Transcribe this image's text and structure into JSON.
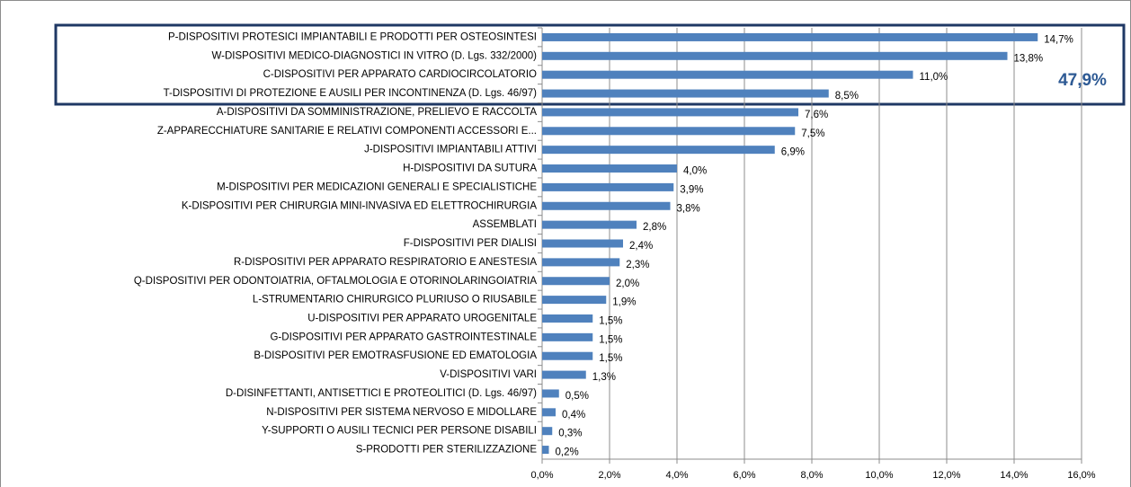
{
  "chart_data": {
    "type": "bar",
    "orientation": "horizontal",
    "categories": [
      "P-DISPOSITIVI PROTESICI IMPIANTABILI E PRODOTTI PER OSTEOSINTESI",
      "W-DISPOSITIVI MEDICO-DIAGNOSTICI IN VITRO (D. Lgs. 332/2000)",
      "C-DISPOSITIVI PER APPARATO CARDIOCIRCOLATORIO",
      "T-DISPOSITIVI DI PROTEZIONE E AUSILI PER INCONTINENZA (D. Lgs. 46/97)",
      "A-DISPOSITIVI DA SOMMINISTRAZIONE, PRELIEVO E RACCOLTA",
      "Z-APPARECCHIATURE SANITARIE E RELATIVI COMPONENTI ACCESSORI E...",
      "J-DISPOSITIVI IMPIANTABILI ATTIVI",
      "H-DISPOSITIVI DA SUTURA",
      "M-DISPOSITIVI PER MEDICAZIONI GENERALI E SPECIALISTICHE",
      "K-DISPOSITIVI PER CHIRURGIA MINI-INVASIVA ED ELETTROCHIRURGIA",
      "ASSEMBLATI",
      "F-DISPOSITIVI PER DIALISI",
      "R-DISPOSITIVI PER APPARATO RESPIRATORIO E ANESTESIA",
      "Q-DISPOSITIVI PER ODONTOIATRIA, OFTALMOLOGIA E OTORINOLARINGOIATRIA",
      "L-STRUMENTARIO CHIRURGICO PLURIUSO O RIUSABILE",
      "U-DISPOSITIVI PER APPARATO UROGENITALE",
      "G-DISPOSITIVI PER APPARATO GASTROINTESTINALE",
      "B-DISPOSITIVI PER EMOTRASFUSIONE ED EMATOLOGIA",
      "V-DISPOSITIVI VARI",
      "D-DISINFETTANTI, ANTISETTICI E PROTEOLITICI (D. Lgs. 46/97)",
      "N-DISPOSITIVI PER SISTEMA NERVOSO E MIDOLLARE",
      "Y-SUPPORTI O AUSILI TECNICI PER PERSONE DISABILI",
      "S-PRODOTTI PER STERILIZZAZIONE"
    ],
    "values": [
      14.7,
      13.8,
      11.0,
      8.5,
      7.6,
      7.5,
      6.9,
      4.0,
      3.9,
      3.8,
      2.8,
      2.4,
      2.3,
      2.0,
      1.9,
      1.5,
      1.5,
      1.5,
      1.3,
      0.5,
      0.4,
      0.3,
      0.2
    ],
    "value_labels": [
      "14,7%",
      "13,8%",
      "11,0%",
      "8,5%",
      "7,6%",
      "7,5%",
      "6,9%",
      "4,0%",
      "3,9%",
      "3,8%",
      "2,8%",
      "2,4%",
      "2,3%",
      "2,0%",
      "1,9%",
      "1,5%",
      "1,5%",
      "1,5%",
      "1,3%",
      "0,5%",
      "0,4%",
      "0,3%",
      "0,2%"
    ],
    "color": "#4f81bd",
    "xlim": [
      0,
      16
    ],
    "xticks": [
      {
        "value": 0,
        "label": "0,0%"
      },
      {
        "value": 2,
        "label": "2,0%"
      },
      {
        "value": 4,
        "label": "4,0%"
      },
      {
        "value": 6,
        "label": "6,0%"
      },
      {
        "value": 8,
        "label": "8,0%"
      },
      {
        "value": 10,
        "label": "10,0%"
      },
      {
        "value": 12,
        "label": "12,0%"
      },
      {
        "value": 14,
        "label": "14,0%"
      },
      {
        "value": 16,
        "label": "16,0%"
      }
    ],
    "grid": true,
    "annotation": "47,9%"
  }
}
